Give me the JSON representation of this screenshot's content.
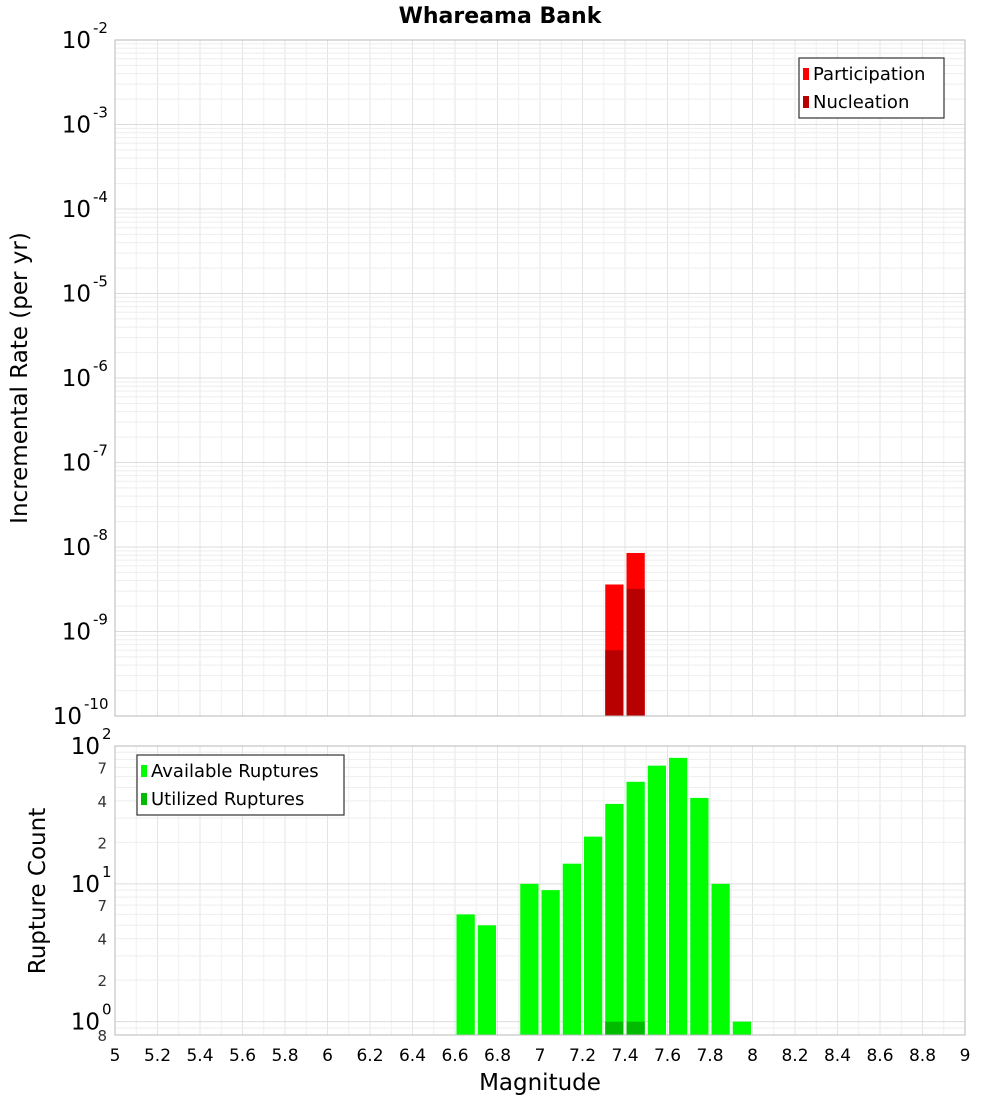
{
  "chart_data": [
    {
      "type": "bar",
      "title": "Whareama Bank",
      "ylabel": "Incremental Rate (per yr)",
      "xlabel": "",
      "y_scale": "log",
      "ylim": [
        1e-10,
        0.01
      ],
      "xlim": [
        5,
        9
      ],
      "grid": true,
      "legend_position": "top-right",
      "bar_width": 0.1,
      "series": [
        {
          "name": "Participation",
          "color": "#ff0000",
          "x": [
            7.35,
            7.45
          ],
          "values": [
            3.6e-09,
            8.5e-09
          ]
        },
        {
          "name": "Nucleation",
          "color": "#b80000",
          "x": [
            7.35,
            7.45
          ],
          "values": [
            6e-10,
            3.2e-09
          ]
        }
      ],
      "y_major_ticks": [
        {
          "v": 0.01,
          "base": "10",
          "exp": "-2"
        },
        {
          "v": 0.001,
          "base": "10",
          "exp": "-3"
        },
        {
          "v": 0.0001,
          "base": "10",
          "exp": "-4"
        },
        {
          "v": 1e-05,
          "base": "10",
          "exp": "-5"
        },
        {
          "v": 1e-06,
          "base": "10",
          "exp": "-6"
        },
        {
          "v": 1e-07,
          "base": "10",
          "exp": "-7"
        },
        {
          "v": 1e-08,
          "base": "10",
          "exp": "-8"
        },
        {
          "v": 1e-09,
          "base": "10",
          "exp": "-9"
        },
        {
          "v": 1e-10,
          "base": "10",
          "exp": "-10"
        }
      ]
    },
    {
      "type": "bar",
      "title": "",
      "ylabel": "Rupture Count",
      "xlabel": "Magnitude",
      "y_scale": "log",
      "ylim": [
        0.8,
        100
      ],
      "xlim": [
        5,
        9
      ],
      "grid": true,
      "legend_position": "top-left",
      "bar_width": 0.1,
      "series": [
        {
          "name": "Available Ruptures",
          "color": "#00ff00",
          "x": [
            6.65,
            6.75,
            6.95,
            7.05,
            7.15,
            7.25,
            7.35,
            7.45,
            7.55,
            7.65,
            7.75,
            7.85,
            7.95
          ],
          "values": [
            6,
            5,
            10,
            9,
            14,
            22,
            38,
            55,
            72,
            82,
            42,
            10,
            1
          ]
        },
        {
          "name": "Utilized Ruptures",
          "color": "#00bb00",
          "x": [
            7.35,
            7.45
          ],
          "values": [
            1,
            1
          ]
        }
      ],
      "y_major_ticks": [
        {
          "v": 100,
          "base": "10",
          "exp": "2"
        },
        {
          "v": 10,
          "base": "10",
          "exp": "1"
        },
        {
          "v": 1,
          "base": "10",
          "exp": "0"
        }
      ],
      "y_minor_ticks": [
        {
          "v": 70,
          "label": "7"
        },
        {
          "v": 40,
          "label": "4"
        },
        {
          "v": 20,
          "label": "2"
        },
        {
          "v": 7,
          "label": "7"
        },
        {
          "v": 4,
          "label": "4"
        },
        {
          "v": 2,
          "label": "2"
        },
        {
          "v": 0.8,
          "label": "8"
        }
      ],
      "x_ticks": [
        "5",
        "5.2",
        "5.4",
        "5.6",
        "5.8",
        "6",
        "6.2",
        "6.4",
        "6.6",
        "6.8",
        "7",
        "7.2",
        "7.4",
        "7.6",
        "7.8",
        "8",
        "8.2",
        "8.4",
        "8.6",
        "8.8",
        "9"
      ]
    }
  ]
}
